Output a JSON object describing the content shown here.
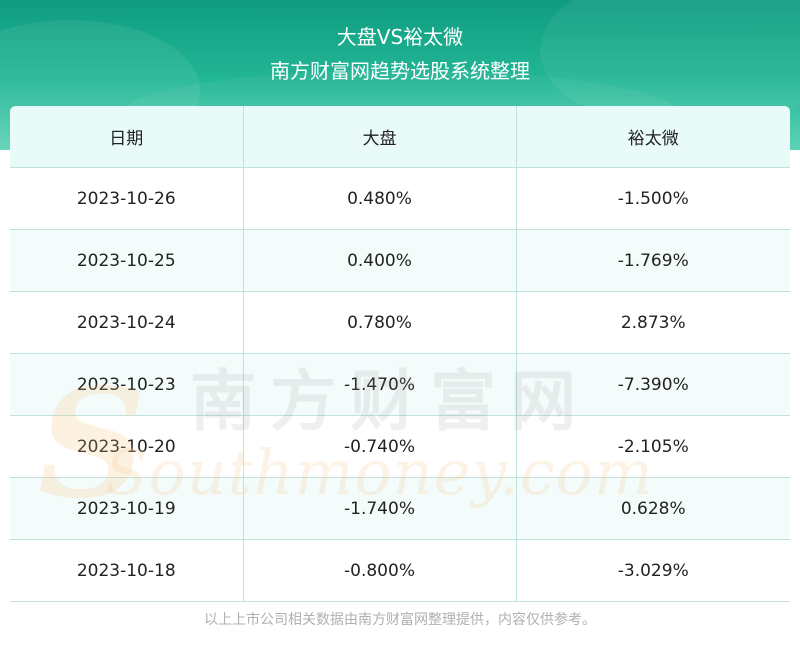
{
  "header": {
    "title": "大盘VS裕太微",
    "subtitle": "南方财富网趋势选股系统整理"
  },
  "table": {
    "columns": [
      "日期",
      "大盘",
      "裕太微"
    ],
    "rows": [
      [
        "2023-10-26",
        "0.480%",
        "-1.500%"
      ],
      [
        "2023-10-25",
        "0.400%",
        "-1.769%"
      ],
      [
        "2023-10-24",
        "0.780%",
        "2.873%"
      ],
      [
        "2023-10-23",
        "-1.470%",
        "-7.390%"
      ],
      [
        "2023-10-20",
        "-0.740%",
        "-2.105%"
      ],
      [
        "2023-10-19",
        "-1.740%",
        "0.628%"
      ],
      [
        "2023-10-18",
        "-0.800%",
        "-3.029%"
      ]
    ]
  },
  "watermark": {
    "cn_text": "南方财富网",
    "en_text": "Southmoney.com"
  },
  "footer": {
    "note": "以上上市公司相关数据由南方财富网整理提供，内容仅供参考。"
  },
  "colors": {
    "header_dark": "#0f9c80",
    "header_light": "#5fd2b6",
    "table_header_bg": "#e9fbf8",
    "grid_line": "#bfe3dc"
  }
}
